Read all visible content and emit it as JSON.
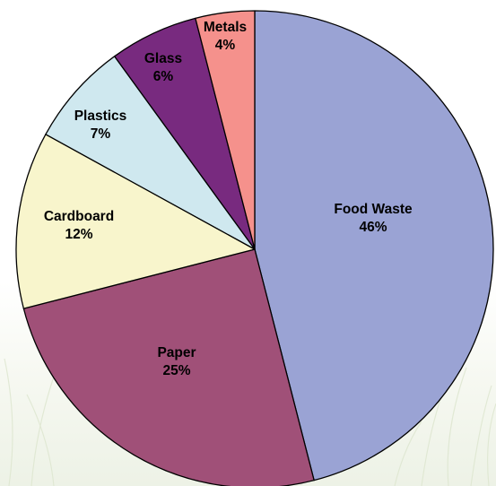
{
  "chart_data": {
    "type": "pie",
    "title": "",
    "start_angle_deg": 0,
    "direction": "clockwise",
    "slices": [
      {
        "label": "Food Waste",
        "value": 46,
        "value_label": "46%",
        "color": "#9aa3d4"
      },
      {
        "label": "Paper",
        "value": 25,
        "value_label": "25%",
        "color": "#a05078"
      },
      {
        "label": "Cardboard",
        "value": 12,
        "value_label": "12%",
        "color": "#f8f5cc"
      },
      {
        "label": "Plastics",
        "value": 7,
        "value_label": "7%",
        "color": "#cfe8ef"
      },
      {
        "label": "Glass",
        "value": 6,
        "value_label": "6%",
        "color": "#782a7f"
      },
      {
        "label": "Metals",
        "value": 4,
        "value_label": "4%",
        "color": "#f5918c"
      }
    ],
    "legend": "none",
    "border_color": "#000000"
  }
}
